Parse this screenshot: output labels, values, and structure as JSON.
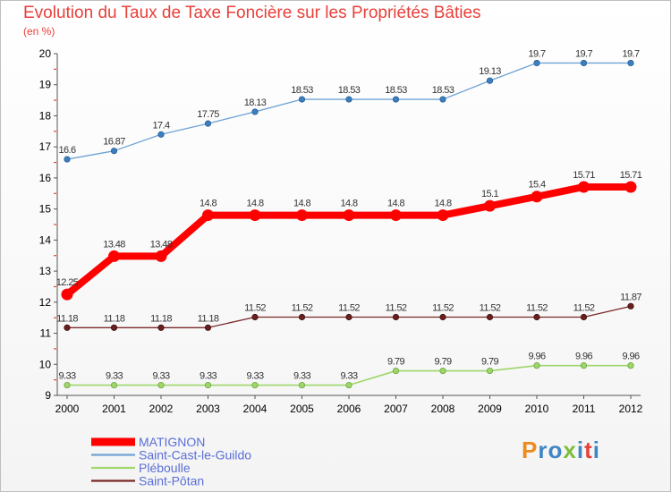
{
  "header": {
    "title": "Evolution du Taux de Taxe Foncière sur les Propriétés Bâties",
    "unit": "(en %)"
  },
  "logo": {
    "text": "Proxiti",
    "colors": [
      "#f08a1c",
      "#3f86c6",
      "#3f86c6",
      "#7cbd3a",
      "#3f86c6",
      "#e8403a",
      "#3f86c6"
    ]
  },
  "chart_data": {
    "type": "line",
    "title": "Evolution du Taux de Taxe Foncière sur les Propriétés Bâties",
    "ylabel": "(en %)",
    "xlabel": "",
    "x": [
      "2000",
      "2001",
      "2002",
      "2003",
      "2004",
      "2005",
      "2006",
      "2007",
      "2008",
      "2009",
      "2010",
      "2011",
      "2012"
    ],
    "ylim": [
      9,
      20
    ],
    "yticks": [
      9,
      10,
      11,
      12,
      13,
      14,
      15,
      16,
      17,
      18,
      19,
      20
    ],
    "series": [
      {
        "name": "MATIGNON",
        "color": "#ff0000",
        "values": [
          12.25,
          13.48,
          13.48,
          14.8,
          14.8,
          14.8,
          14.8,
          14.8,
          14.8,
          15.1,
          15.4,
          15.71,
          15.71
        ],
        "labels": [
          "12.25",
          "13.48",
          "13.48",
          "14.8",
          "14.8",
          "14.8",
          "14.8",
          "14.8",
          "14.8",
          "15.1",
          "15.4",
          "15.71",
          "15.71"
        ]
      },
      {
        "name": "Saint-Cast-le-Guildo",
        "color": "#6fa3d4",
        "values": [
          16.6,
          16.87,
          17.4,
          17.75,
          18.13,
          18.53,
          18.53,
          18.53,
          18.53,
          19.13,
          19.7,
          19.7,
          19.7
        ],
        "labels": [
          "16.6",
          "16.87",
          "17.4",
          "17.75",
          "18.13",
          "18.53",
          "18.53",
          "18.53",
          "18.53",
          "19.13",
          "19.7",
          "19.7",
          "19.7"
        ]
      },
      {
        "name": "Pléboulle",
        "color": "#9ed66a",
        "values": [
          9.33,
          9.33,
          9.33,
          9.33,
          9.33,
          9.33,
          9.33,
          9.79,
          9.79,
          9.79,
          9.96,
          9.96,
          9.96
        ],
        "labels": [
          "9.33",
          "9.33",
          "9.33",
          "9.33",
          "9.33",
          "9.33",
          "9.33",
          "9.79",
          "9.79",
          "9.79",
          "9.96",
          "9.96",
          "9.96"
        ]
      },
      {
        "name": "Saint-Pôtan",
        "color": "#7a2828",
        "values": [
          11.18,
          11.18,
          11.18,
          11.18,
          11.52,
          11.52,
          11.52,
          11.52,
          11.52,
          11.52,
          11.52,
          11.52,
          11.87
        ],
        "labels": [
          "11.18",
          "11.18",
          "11.18",
          "11.18",
          "11.52",
          "11.52",
          "11.52",
          "11.52",
          "11.52",
          "11.52",
          "11.52",
          "11.52",
          "11.87"
        ]
      }
    ],
    "legend_position": "bottom-left",
    "grid": false
  }
}
